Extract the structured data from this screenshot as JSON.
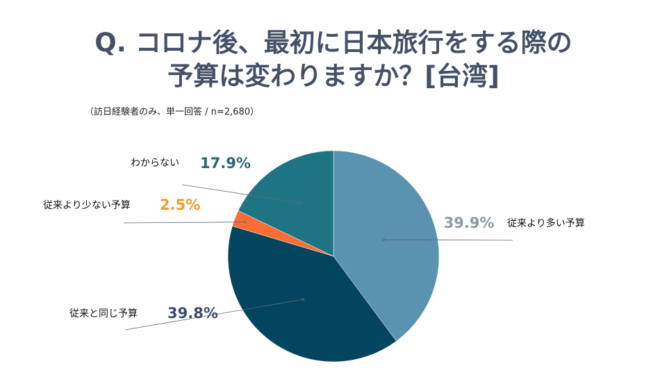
{
  "title_line1": "Q. コロナ後、最初に日本旅行をする際の",
  "title_line2": "予算は変わりますか？[台湾]",
  "subtitle": "（訪日経験者のみ、単一回答 / n=2,680）",
  "chart_data": {
    "type": "pie",
    "title": "Q. コロナ後、最初に日本旅行をする際の 予算は変わりますか？[台湾]",
    "subtitle": "（訪日経験者のみ、単一回答 / n=2,680）",
    "start_angle_deg": 0,
    "direction": "clockwise",
    "slices": [
      {
        "label": "従来より多い予算",
        "value": 39.9,
        "display": "39.9%",
        "color": "#5a93b0",
        "value_color": "#8d99a6"
      },
      {
        "label": "従来と同じ予算",
        "value": 39.8,
        "display": "39.8%",
        "color": "#03445f",
        "value_color": "#3d4c66"
      },
      {
        "label": "従来より少ない予算",
        "value": 2.5,
        "display": "2.5%",
        "color": "#fb6d34",
        "value_color": "#f29b2b"
      },
      {
        "label": "わからない",
        "value": 17.9,
        "display": "17.9%",
        "color": "#1e7483",
        "value_color": "#2a6470"
      }
    ],
    "legend": "none"
  }
}
